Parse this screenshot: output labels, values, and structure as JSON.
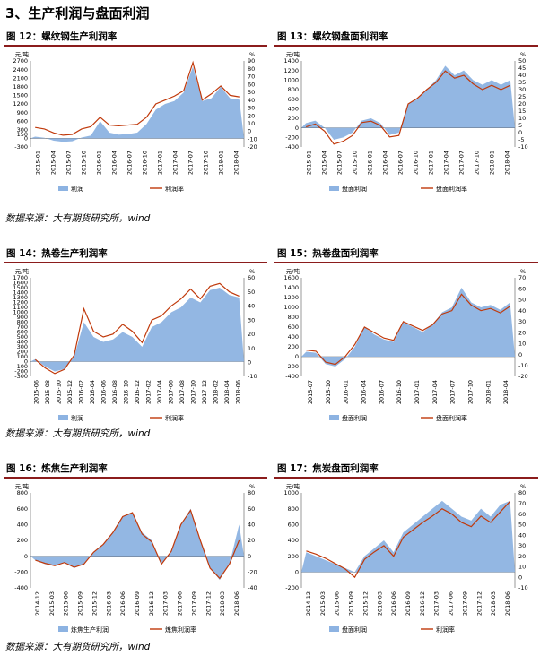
{
  "section_title": "3、生产利润与盘面利润",
  "source_text": "数据来源：大有期货研究所，wind",
  "colors": {
    "bar": "#8db3e2",
    "line": "#c0390b",
    "header_rule": "#8b1c1c"
  },
  "chart_data": [
    {
      "id": "fig12",
      "title": "图 12：螺纹钢生产利润率",
      "type": "area",
      "y_unit": "元/吨",
      "y2_unit": "%",
      "ylim": [
        -300,
        2700
      ],
      "yticks": [
        -300,
        0,
        150,
        300,
        600,
        900,
        1200,
        1500,
        1800,
        2100,
        2400,
        2700
      ],
      "y2lim": [
        -20,
        90
      ],
      "y2ticks": [
        -20,
        -10,
        0,
        10,
        20,
        30,
        40,
        50,
        60,
        70,
        80,
        90
      ],
      "x_labels": [
        "2015-01",
        "2015-04",
        "2015-07",
        "2015-10",
        "2016-01",
        "2016-04",
        "2016-07",
        "2016-10",
        "2017-01",
        "2017-04",
        "2017-07",
        "2017-10",
        "2018-01",
        "2018-04"
      ],
      "series": [
        {
          "name": "利润",
          "axis": "left",
          "values": [
            60,
            20,
            -80,
            -120,
            -100,
            30,
            100,
            600,
            200,
            130,
            150,
            200,
            500,
            1000,
            1200,
            1300,
            1600,
            2500,
            1300,
            1400,
            1800,
            1400,
            1350
          ]
        },
        {
          "name": "利润率",
          "axis": "right",
          "values": [
            5,
            3,
            -2,
            -5,
            -4,
            3,
            6,
            18,
            8,
            7,
            8,
            9,
            18,
            35,
            40,
            45,
            52,
            88,
            40,
            48,
            58,
            46,
            44
          ]
        }
      ]
    },
    {
      "id": "fig13",
      "title": "图 13：螺纹钢盘面利润率",
      "type": "area",
      "y_unit": "元/吨",
      "y2_unit": "%",
      "ylim": [
        -400,
        1400
      ],
      "yticks": [
        -400,
        -200,
        0,
        200,
        400,
        600,
        800,
        1000,
        1200,
        1400
      ],
      "y2lim": [
        -10,
        50
      ],
      "y2ticks": [
        -10,
        -5,
        0,
        5,
        10,
        15,
        20,
        25,
        30,
        35,
        40,
        45,
        50
      ],
      "x_labels": [
        "2015-01",
        "2015-04",
        "2015-07",
        "2015-10",
        "2016-01",
        "2016-04",
        "2016-07",
        "2016-10",
        "2017-01",
        "2017-04",
        "2017-07",
        "2017-10",
        "2018-01",
        "2018-04"
      ],
      "series": [
        {
          "name": "盘面利润",
          "axis": "left",
          "values": [
            100,
            150,
            0,
            -250,
            -200,
            -100,
            150,
            200,
            100,
            -150,
            -100,
            500,
            600,
            800,
            1000,
            1300,
            1100,
            1200,
            1000,
            900,
            1000,
            900,
            1000
          ]
        },
        {
          "name": "盘面利润率",
          "axis": "right",
          "values": [
            4,
            6,
            1,
            -8,
            -6,
            -2,
            7,
            8,
            5,
            -3,
            -2,
            20,
            24,
            30,
            35,
            43,
            38,
            40,
            34,
            30,
            33,
            30,
            33
          ]
        }
      ]
    },
    {
      "id": "fig14",
      "title": "图 14：热卷生产利润率",
      "type": "area",
      "y_unit": "元/吨",
      "y2_unit": "%",
      "ylim": [
        -300,
        1700
      ],
      "yticks": [
        -300,
        -200,
        -100,
        0,
        100,
        200,
        300,
        400,
        500,
        600,
        700,
        800,
        900,
        1000,
        1100,
        1200,
        1300,
        1400,
        1500,
        1600,
        1700
      ],
      "y2lim": [
        -10,
        60
      ],
      "y2ticks": [
        -10,
        0,
        10,
        20,
        30,
        40,
        50,
        60
      ],
      "x_labels": [
        "2015-06",
        "2015-08",
        "2015-10",
        "2015-12",
        "2016-02",
        "2016-04",
        "2016-06",
        "2016-08",
        "2016-10",
        "2016-12",
        "2017-02",
        "2017-04",
        "2017-06",
        "2017-08",
        "2017-10",
        "2017-12",
        "2018-02",
        "2018-04",
        "2018-06"
      ],
      "series": [
        {
          "name": "利润",
          "axis": "left",
          "values": [
            50,
            -100,
            -200,
            -150,
            100,
            800,
            500,
            400,
            450,
            600,
            500,
            300,
            700,
            800,
            1000,
            1100,
            1300,
            1200,
            1450,
            1500,
            1350,
            1300
          ]
        },
        {
          "name": "利润率",
          "axis": "right",
          "values": [
            2,
            -4,
            -8,
            -5,
            5,
            38,
            22,
            18,
            20,
            27,
            22,
            14,
            30,
            33,
            40,
            45,
            52,
            45,
            54,
            56,
            50,
            47
          ]
        }
      ]
    },
    {
      "id": "fig15",
      "title": "图 15：热卷盘面利润率",
      "type": "area",
      "y_unit": "元/吨",
      "y2_unit": "%",
      "ylim": [
        -400,
        1600
      ],
      "yticks": [
        -400,
        -200,
        0,
        200,
        400,
        600,
        800,
        1000,
        1200,
        1400,
        1600
      ],
      "y2lim": [
        -20,
        70
      ],
      "y2ticks": [
        -20,
        -10,
        0,
        10,
        20,
        30,
        40,
        50,
        60,
        70
      ],
      "x_labels": [
        "2015-07",
        "2015-10",
        "2016-01",
        "2016-04",
        "2016-07",
        "2016-10",
        "2017-01",
        "2017-04",
        "2017-07",
        "2017-10",
        "2018-01",
        "2018-04"
      ],
      "series": [
        {
          "name": "盘面利润",
          "axis": "left",
          "values": [
            100,
            80,
            -150,
            -200,
            -50,
            200,
            600,
            450,
            350,
            300,
            700,
            600,
            500,
            650,
            900,
            1000,
            1400,
            1100,
            1000,
            1050,
            950,
            1100
          ]
        },
        {
          "name": "盘面利润率",
          "axis": "right",
          "values": [
            4,
            3,
            -7,
            -9,
            -2,
            9,
            25,
            20,
            15,
            13,
            30,
            26,
            22,
            27,
            37,
            40,
            55,
            45,
            40,
            42,
            38,
            44
          ]
        }
      ]
    },
    {
      "id": "fig16",
      "title": "图 16：炼焦生产利润率",
      "type": "area",
      "y_unit": "元/吨",
      "y2_unit": "%",
      "ylim": [
        -400,
        800
      ],
      "yticks": [
        -400,
        -200,
        0,
        200,
        400,
        600,
        800
      ],
      "y2lim": [
        -40,
        80
      ],
      "y2ticks": [
        -40,
        -20,
        0,
        20,
        40,
        60,
        80
      ],
      "x_labels": [
        "2014-12",
        "2015-03",
        "2015-06",
        "2015-09",
        "2015-12",
        "2016-03",
        "2016-06",
        "2016-09",
        "2016-12",
        "2017-03",
        "2017-06",
        "2017-09",
        "2017-12",
        "2018-03",
        "2018-06"
      ],
      "series": [
        {
          "name": "炼焦生产利润",
          "axis": "left",
          "values": [
            -50,
            -100,
            -120,
            -80,
            -150,
            -100,
            50,
            150,
            300,
            500,
            550,
            300,
            200,
            -100,
            50,
            400,
            600,
            200,
            -150,
            -300,
            -100,
            400
          ]
        },
        {
          "name": "炼焦利润率",
          "axis": "right",
          "values": [
            -5,
            -9,
            -12,
            -8,
            -14,
            -10,
            5,
            15,
            30,
            50,
            55,
            28,
            18,
            -10,
            6,
            40,
            58,
            20,
            -15,
            -28,
            -10,
            20
          ]
        }
      ]
    },
    {
      "id": "fig17",
      "title": "图 17：焦炭盘面利润率",
      "type": "area",
      "y_unit": "元/吨",
      "y2_unit": "%",
      "ylim": [
        -200,
        1000
      ],
      "yticks": [
        -200,
        0,
        200,
        400,
        600,
        800,
        1000
      ],
      "y2lim": [
        -10,
        80
      ],
      "y2ticks": [
        -10,
        0,
        10,
        20,
        30,
        40,
        50,
        60,
        70,
        80
      ],
      "x_labels": [
        "2014-12",
        "2015-03",
        "2015-06",
        "2015-09",
        "2015-12",
        "2016-03",
        "2016-06",
        "2016-09",
        "2016-12",
        "2017-03",
        "2017-06",
        "2017-09",
        "2017-12",
        "2018-03",
        "2018-06"
      ],
      "series": [
        {
          "name": "盘面利润",
          "axis": "left",
          "values": [
            250,
            200,
            150,
            100,
            50,
            0,
            200,
            300,
            400,
            250,
            500,
            600,
            700,
            800,
            900,
            800,
            700,
            650,
            800,
            700,
            850,
            900
          ]
        },
        {
          "name": "利润率",
          "axis": "right",
          "values": [
            25,
            22,
            18,
            13,
            8,
            0,
            17,
            24,
            30,
            20,
            38,
            45,
            52,
            58,
            65,
            60,
            52,
            48,
            58,
            52,
            62,
            72
          ]
        }
      ]
    }
  ]
}
